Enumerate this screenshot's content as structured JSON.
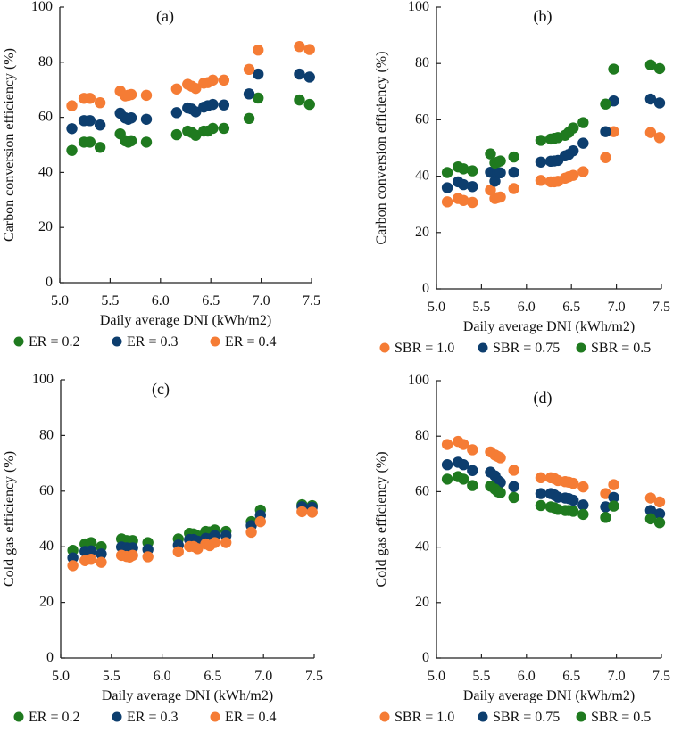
{
  "colors": {
    "green": "#1f7a1f",
    "blue": "#0d3e6e",
    "orange": "#f57c35"
  },
  "chart_data": [
    {
      "panel": "(a)",
      "type": "scatter",
      "xlabel": "Daily average DNI (kWh/m2)",
      "ylabel": "Carbon conversion efficiency (%)",
      "xlim": [
        5.0,
        7.5
      ],
      "ylim": [
        0,
        100
      ],
      "xticks": [
        "5.0",
        "5.5",
        "6.0",
        "6.5",
        "7.0",
        "7.5"
      ],
      "yticks": [
        "0",
        "20",
        "40",
        "60",
        "80",
        "100"
      ],
      "x": [
        5.12,
        5.24,
        5.3,
        5.4,
        5.6,
        5.65,
        5.68,
        5.71,
        5.86,
        6.16,
        6.27,
        6.31,
        6.35,
        6.43,
        6.47,
        6.52,
        6.63,
        6.88,
        6.97,
        7.38,
        7.48
      ],
      "series": [
        {
          "name": "ER = 0.2",
          "color": "#1f7a1f",
          "values": [
            48,
            51,
            51,
            49.1,
            54,
            51.5,
            51,
            51.5,
            51,
            53.7,
            55,
            54.5,
            53.5,
            55,
            55,
            56,
            56,
            59.6,
            67,
            66.3,
            64.7
          ]
        },
        {
          "name": "ER = 0.3",
          "color": "#0d3e6e",
          "values": [
            55.9,
            58.8,
            58.8,
            57.2,
            61.5,
            59.8,
            59.3,
            59.8,
            59.3,
            61.7,
            63.4,
            63,
            62,
            63.7,
            64.2,
            64.7,
            64.5,
            68.5,
            75.7,
            75.7,
            74.6
          ]
        },
        {
          "name": "ER = 0.4",
          "color": "#f57c35",
          "values": [
            64.2,
            66.9,
            66.9,
            65.3,
            69.5,
            67.8,
            68,
            68.3,
            68,
            70.3,
            72,
            71.3,
            70.5,
            72.4,
            72.6,
            73.5,
            73.5,
            77.4,
            84.4,
            85.7,
            84.6
          ]
        }
      ],
      "legend": [
        "ER = 0.2",
        "ER = 0.3",
        "ER = 0.4"
      ]
    },
    {
      "panel": "(b)",
      "type": "scatter",
      "xlabel": "Daily average DNI (kWh/m2)",
      "ylabel": "Carbon conversion efficiency (%)",
      "xlim": [
        5.0,
        7.5
      ],
      "ylim": [
        0,
        100
      ],
      "xticks": [
        "5.0",
        "5.5",
        "6.0",
        "6.5",
        "7.0",
        "7.5"
      ],
      "yticks": [
        "0",
        "20",
        "40",
        "60",
        "80",
        "100"
      ],
      "x": [
        5.12,
        5.24,
        5.3,
        5.4,
        5.6,
        5.65,
        5.68,
        5.71,
        5.86,
        6.16,
        6.27,
        6.31,
        6.35,
        6.43,
        6.47,
        6.52,
        6.63,
        6.88,
        6.97,
        7.38,
        7.48
      ],
      "series": [
        {
          "name": "SBR = 1.0",
          "color": "#f57c35",
          "values": [
            30.9,
            32.1,
            31.4,
            30.7,
            35.1,
            32.1,
            32.4,
            32.6,
            35.6,
            38.5,
            38,
            38,
            38.2,
            39.3,
            39.8,
            40.3,
            41.6,
            46.6,
            55.8,
            55.5,
            53.7
          ]
        },
        {
          "name": "SBR = 0.75",
          "color": "#0d3e6e",
          "values": [
            35.9,
            38,
            37,
            36.3,
            41.4,
            38.2,
            41.2,
            41.2,
            41.4,
            45,
            45.3,
            45.4,
            45.6,
            47.2,
            47.7,
            49,
            51.7,
            55.8,
            66.7,
            67.4,
            66
          ]
        },
        {
          "name": "SBR = 0.5",
          "color": "#1f7a1f",
          "values": [
            41.3,
            43.3,
            42.6,
            41.9,
            47.9,
            44.7,
            45,
            45.4,
            46.8,
            52.7,
            53.2,
            53.4,
            53.7,
            54.5,
            55.5,
            57.1,
            59,
            65.6,
            78,
            79.5,
            78.2
          ]
        }
      ],
      "legend": [
        "SBR  = 1.0",
        "SBR = 0.75",
        "SBR = 0.5"
      ]
    },
    {
      "panel": "(c)",
      "type": "scatter",
      "xlabel": "Daily average DNI (kWh/m2)",
      "ylabel": "Cold gas efficiency (%)",
      "xlim": [
        5.0,
        7.5
      ],
      "ylim": [
        0,
        100
      ],
      "xticks": [
        "5.0",
        "5.5",
        "6.0",
        "6.5",
        "7.0",
        "7.5"
      ],
      "yticks": [
        "0",
        "20",
        "40",
        "60",
        "80",
        "100"
      ],
      "x": [
        5.12,
        5.24,
        5.3,
        5.4,
        5.6,
        5.65,
        5.68,
        5.71,
        5.86,
        6.16,
        6.27,
        6.31,
        6.35,
        6.43,
        6.47,
        6.52,
        6.63,
        6.88,
        6.97,
        7.38,
        7.48
      ],
      "series": [
        {
          "name": "ER = 0.2",
          "color": "#1f7a1f",
          "values": [
            38.7,
            41,
            41.5,
            40,
            42.8,
            42.2,
            42,
            42.2,
            41.5,
            42.8,
            44.8,
            44.6,
            43.9,
            45.5,
            45.3,
            46,
            45.5,
            49,
            53.2,
            55.1,
            54.8
          ]
        },
        {
          "name": "ER = 0.3",
          "color": "#0d3e6e",
          "values": [
            36,
            38.3,
            38.5,
            37.4,
            39.9,
            39.6,
            39.4,
            39.6,
            39,
            40.6,
            42.6,
            42.6,
            42,
            43,
            42.8,
            44,
            44,
            47.6,
            51.3,
            54.4,
            54.2
          ]
        },
        {
          "name": "ER = 0.4",
          "color": "#f57c35",
          "values": [
            33.2,
            35,
            35.5,
            34.4,
            36.9,
            36.5,
            36.3,
            36.9,
            36.4,
            38.2,
            40.1,
            40.1,
            39.3,
            41,
            40.4,
            41.5,
            41.5,
            45.2,
            49,
            52.6,
            52.4
          ]
        }
      ],
      "legend": [
        "ER = 0.2",
        "ER = 0.3",
        "ER = 0.4"
      ]
    },
    {
      "panel": "(d)",
      "type": "scatter",
      "xlabel": "Daily average DNI (kWh/m2)",
      "ylabel": "Cold gas efficiency (%)",
      "xlim": [
        5.0,
        7.5
      ],
      "ylim": [
        0,
        100
      ],
      "xticks": [
        "5.0",
        "5.5",
        "6.0",
        "6.5",
        "7.0",
        "7.5"
      ],
      "yticks": [
        "0",
        "20",
        "40",
        "60",
        "80",
        "100"
      ],
      "x": [
        5.12,
        5.24,
        5.3,
        5.4,
        5.6,
        5.65,
        5.68,
        5.71,
        5.86,
        6.16,
        6.27,
        6.31,
        6.35,
        6.43,
        6.47,
        6.52,
        6.63,
        6.88,
        6.97,
        7.38,
        7.48
      ],
      "series": [
        {
          "name": "SBR = 1.0",
          "color": "#f57c35",
          "values": [
            77,
            78.1,
            77,
            75.1,
            74.3,
            73.2,
            72.7,
            72.2,
            67.7,
            65,
            65,
            64.7,
            64,
            63.6,
            63.4,
            63,
            61.7,
            59.3,
            62.5,
            57.7,
            56.3
          ]
        },
        {
          "name": "SBR = 0.75",
          "color": "#0d3e6e",
          "values": [
            69.7,
            70.6,
            69.7,
            67.6,
            67,
            65.7,
            64.1,
            63.3,
            61.8,
            59.3,
            59.3,
            58.8,
            58,
            57.7,
            57.5,
            56.9,
            55.2,
            54.5,
            57.9,
            53.2,
            52
          ]
        },
        {
          "name": "SBR = 0.5",
          "color": "#1f7a1f",
          "values": [
            64.5,
            65.4,
            64.5,
            62.2,
            62,
            60.9,
            60,
            59.6,
            57.9,
            55,
            54.5,
            54.2,
            53.6,
            53.2,
            53.2,
            52.9,
            51.8,
            50.7,
            54.8,
            50.2,
            48.8
          ]
        }
      ],
      "legend": [
        "SBR  = 1.0",
        "SBR = 0.75",
        "SBR = 0.5"
      ]
    }
  ]
}
